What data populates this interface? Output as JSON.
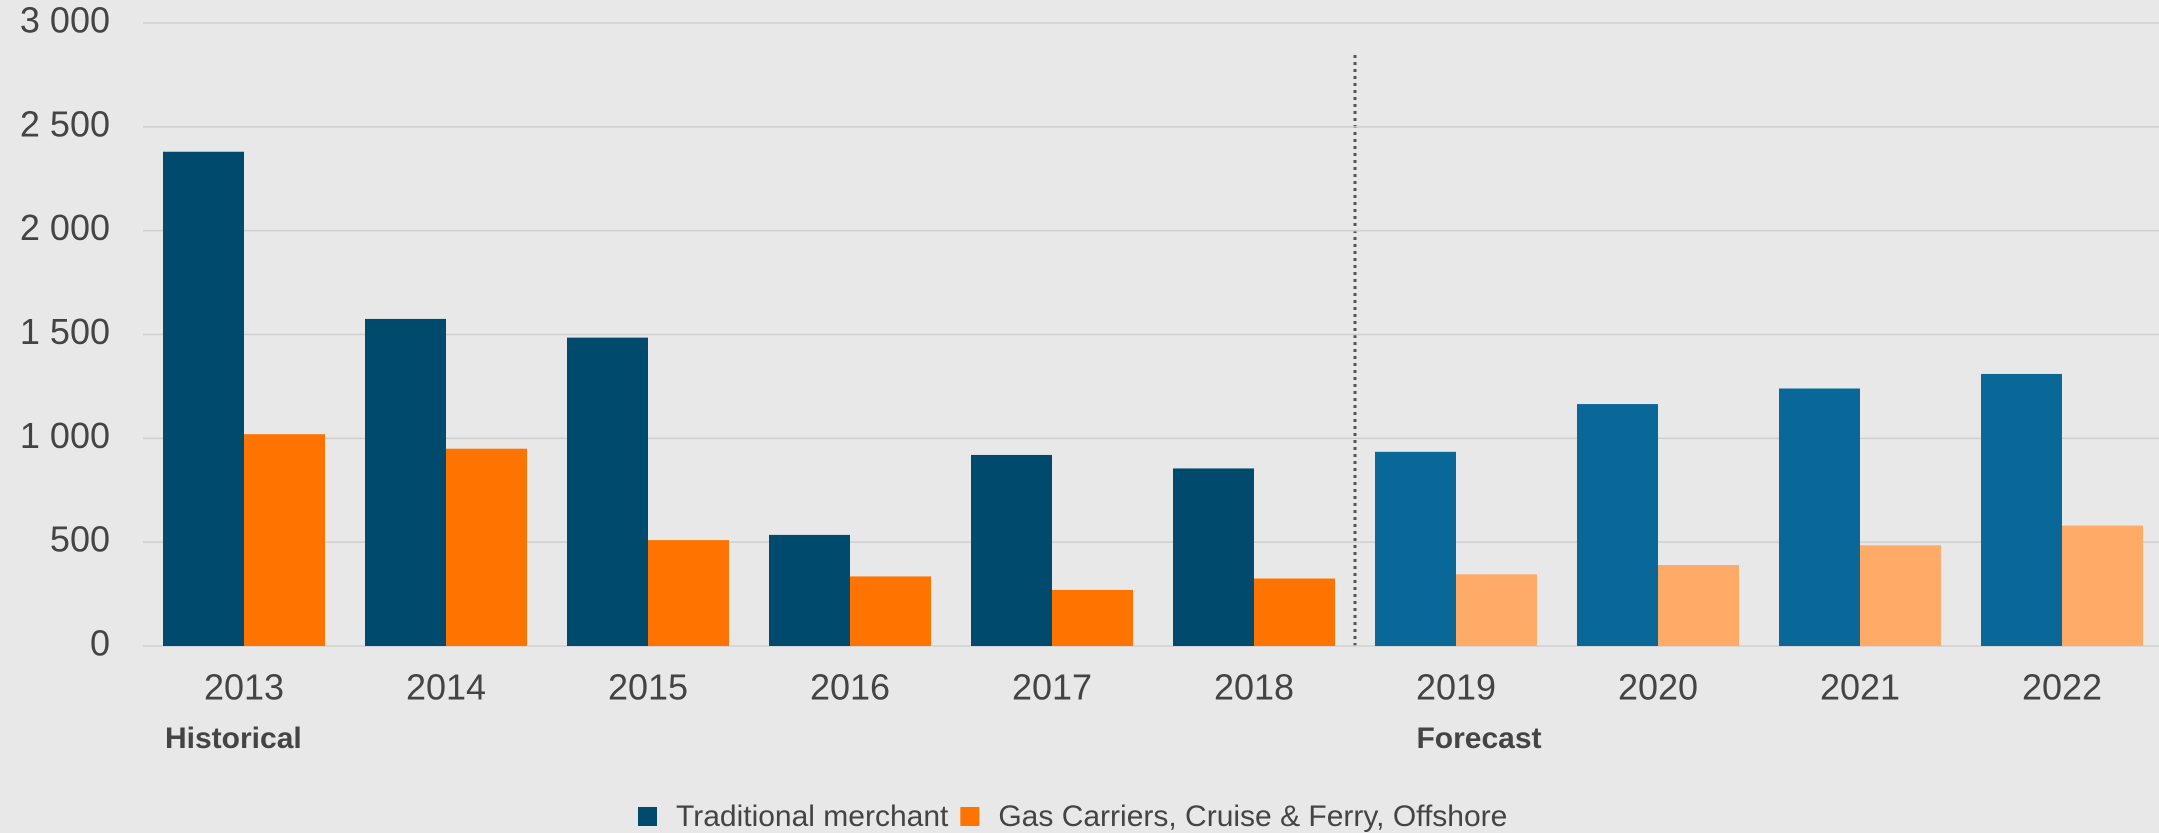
{
  "chart_data": {
    "type": "bar",
    "categories": [
      "2013",
      "2014",
      "2015",
      "2016",
      "2017",
      "2018",
      "2019",
      "2020",
      "2021",
      "2022"
    ],
    "series": [
      {
        "name": "Traditional merchant",
        "color": "#004a6e",
        "colors": [
          "#004a6e",
          "#004a6e",
          "#004a6e",
          "#004a6e",
          "#004a6e",
          "#004a6e",
          "#0a6898",
          "#0a6898",
          "#0a6898",
          "#0a6898"
        ],
        "values": [
          2380,
          1575,
          1485,
          535,
          920,
          855,
          935,
          1165,
          1240,
          1310
        ]
      },
      {
        "name": "Gas Carriers, Cruise & Ferry, Offshore",
        "color": "#ff7300",
        "colors": [
          "#ff7300",
          "#ff7300",
          "#ff7300",
          "#ff7300",
          "#ff7300",
          "#ff7300",
          "#ffaa66",
          "#ffaa66",
          "#ffaa66",
          "#ffaa66"
        ],
        "values": [
          1020,
          950,
          510,
          335,
          270,
          325,
          345,
          390,
          485,
          580
        ]
      }
    ],
    "annotations": [
      "Historical",
      "Forecast"
    ],
    "ylim": [
      0,
      3000
    ],
    "yticks": [
      0,
      500,
      {
        "value": 1000,
        "label": "1 000"
      },
      {
        "value": 1500,
        "label": "1 500"
      },
      {
        "value": 2000,
        "label": "2 000"
      },
      {
        "value": 2500,
        "label": "2 500"
      },
      {
        "value": 3000,
        "label": "3 000"
      }
    ],
    "grid": true
  }
}
